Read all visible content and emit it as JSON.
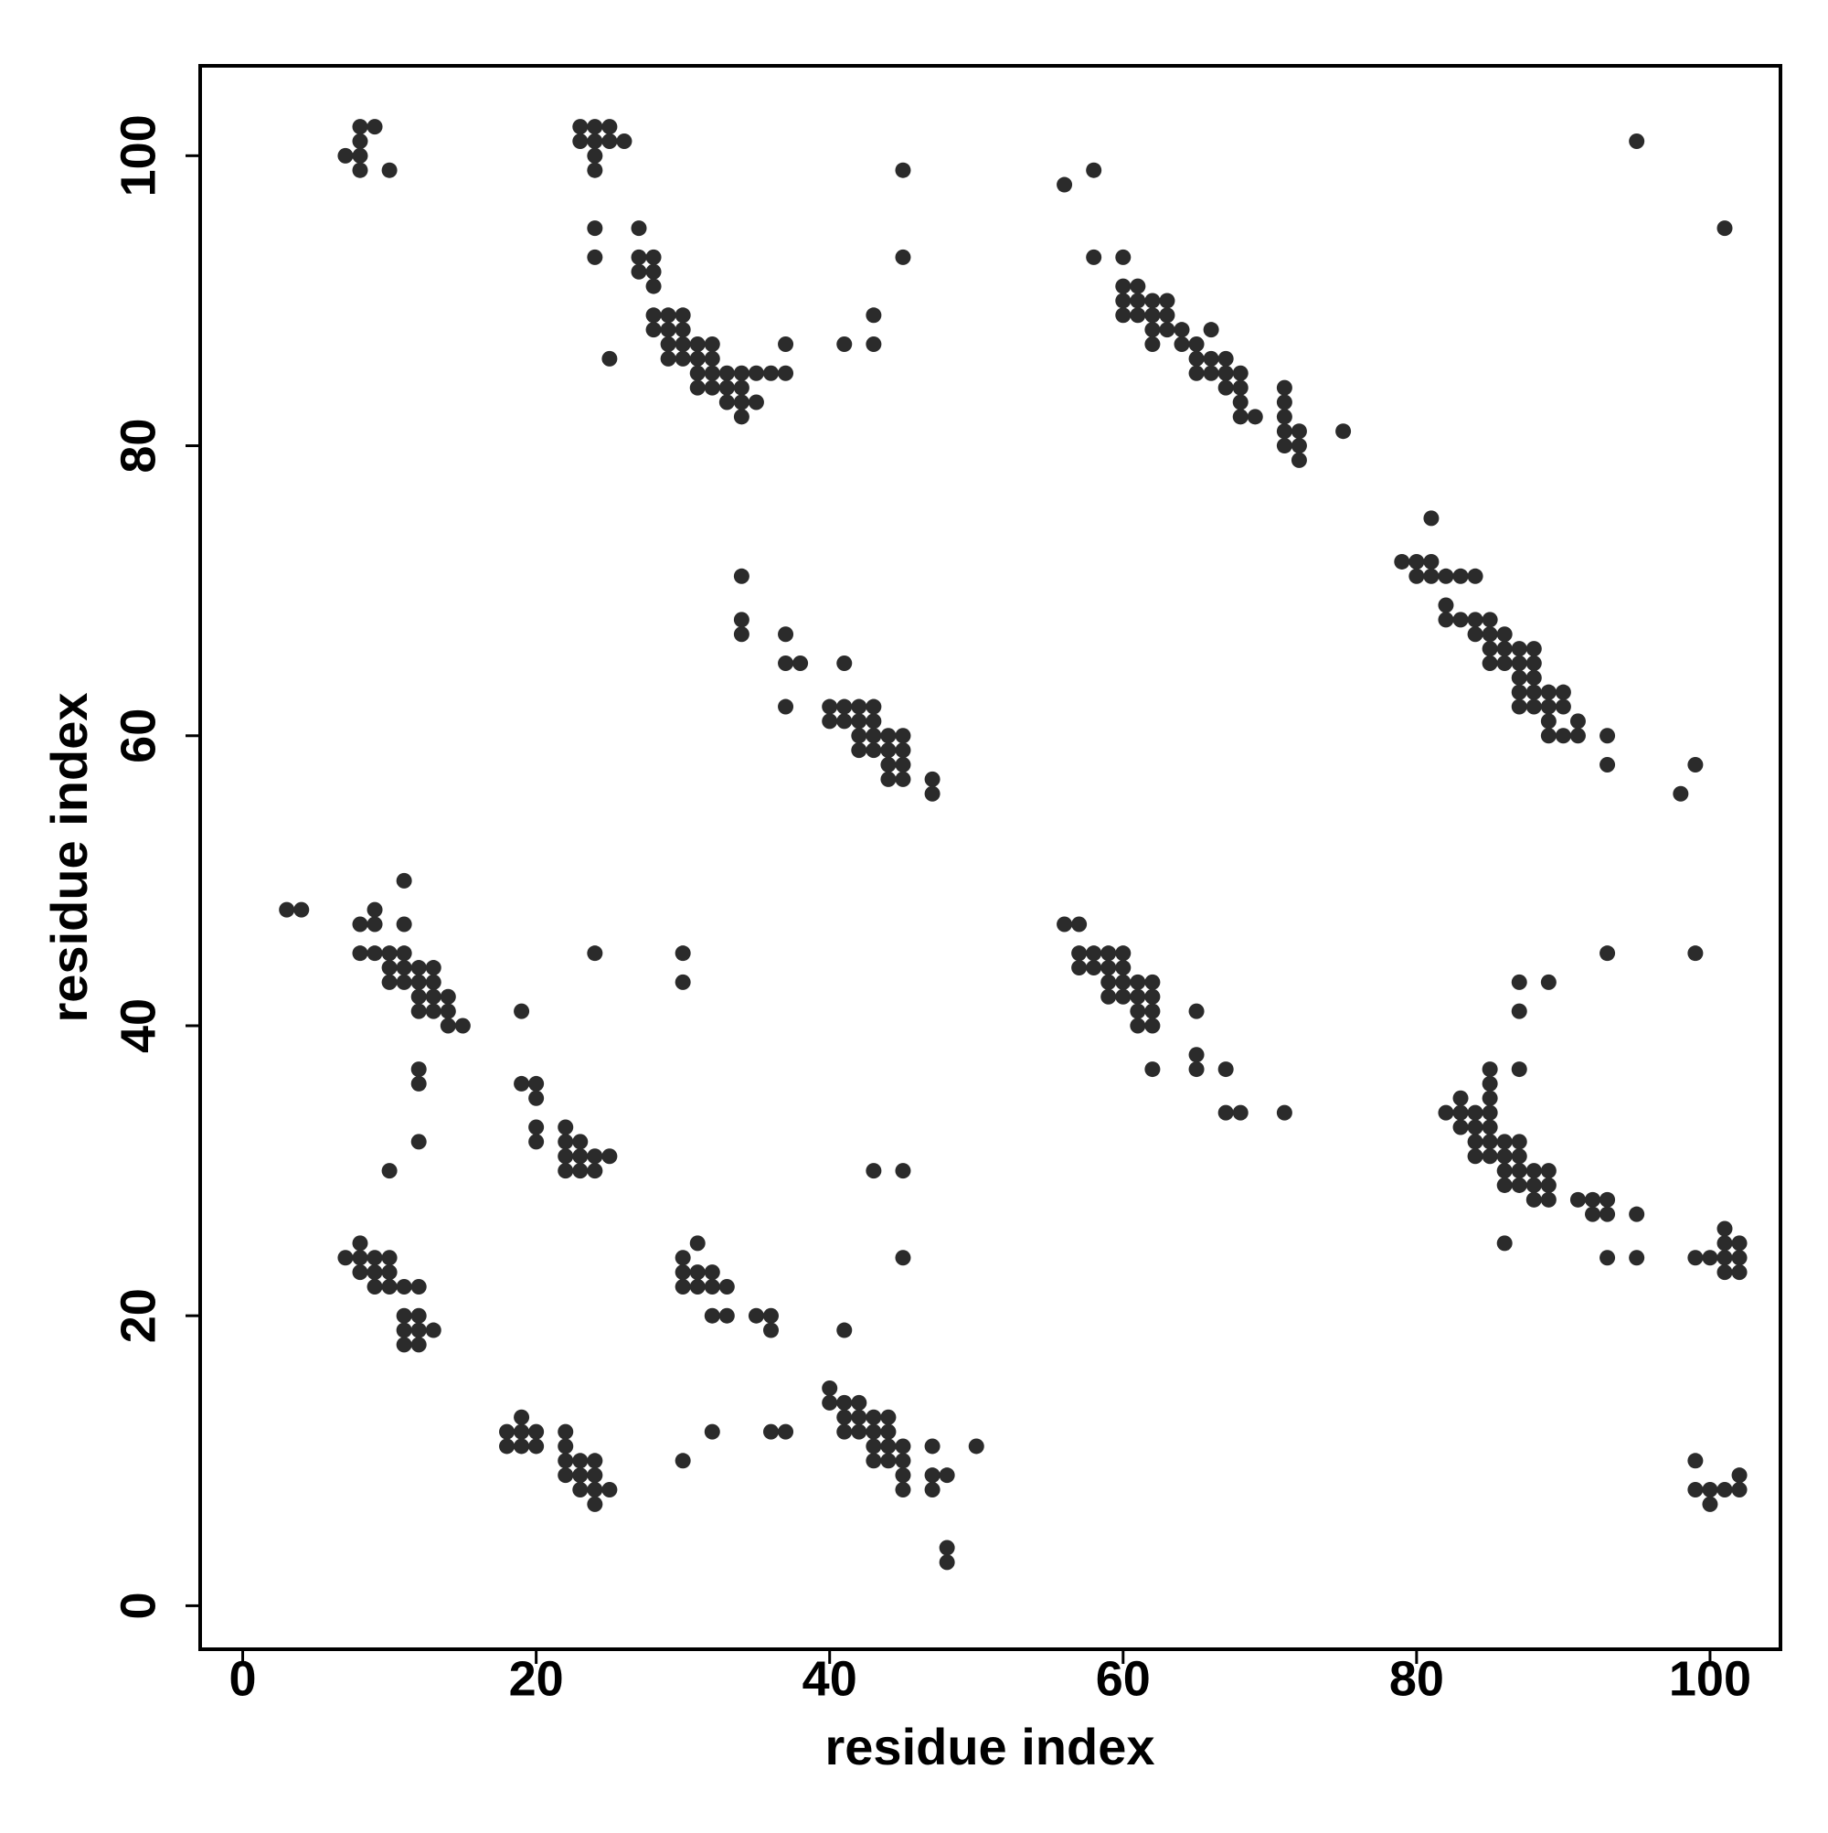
{
  "chart_data": {
    "type": "scatter",
    "xlabel": "residue index",
    "ylabel": "residue index",
    "xlim": [
      -2.9,
      104.8
    ],
    "ylim": [
      -3,
      106.2
    ],
    "xticks": [
      0,
      20,
      40,
      60,
      80,
      100
    ],
    "yticks": [
      0,
      20,
      40,
      60,
      80,
      100
    ],
    "grid": false,
    "series": [
      {
        "color": "#2b2b2b",
        "x": [
          7,
          8,
          9,
          8,
          8,
          10,
          8,
          23,
          24,
          25,
          23,
          24,
          25,
          26,
          24,
          24,
          24,
          24,
          25,
          27,
          27,
          28,
          27,
          28,
          28,
          28,
          29,
          30,
          28,
          29,
          30,
          29,
          30,
          31,
          32,
          29,
          30,
          31,
          32,
          31,
          32,
          33,
          34,
          35,
          36,
          37,
          37,
          31,
          32,
          33,
          34,
          33,
          34,
          35,
          34,
          41,
          43,
          43,
          45,
          45,
          56,
          58,
          58,
          60,
          60,
          61,
          60,
          61,
          62,
          63,
          60,
          61,
          62,
          63,
          62,
          63,
          64,
          62,
          64,
          65,
          66,
          65,
          66,
          67,
          65,
          66,
          67,
          68,
          67,
          68,
          68,
          68,
          69,
          71,
          71,
          71,
          71,
          72,
          71,
          72,
          72,
          75,
          95,
          101,
          34,
          34,
          34,
          37,
          37,
          38,
          37,
          41,
          40,
          40,
          41,
          42,
          43,
          41,
          42,
          43,
          42,
          43,
          44,
          45,
          42,
          43,
          44,
          45,
          44,
          45,
          44,
          45,
          47,
          47,
          81,
          79,
          80,
          81,
          80,
          81,
          82,
          83,
          84,
          82,
          82,
          83,
          84,
          85,
          84,
          85,
          86,
          85,
          86,
          87,
          88,
          85,
          86,
          87,
          88,
          87,
          88,
          87,
          88,
          89,
          90,
          87,
          88,
          89,
          90,
          89,
          91,
          89,
          90,
          91,
          93,
          93,
          98,
          99,
          3,
          4,
          8,
          9,
          9,
          11,
          11,
          8,
          9,
          10,
          11,
          10,
          11,
          12,
          13,
          10,
          11,
          12,
          13,
          12,
          13,
          14,
          12,
          13,
          14,
          14,
          15,
          12,
          12,
          12,
          10,
          24,
          30,
          30,
          19,
          19,
          20,
          20,
          20,
          20,
          22,
          22,
          23,
          22,
          23,
          24,
          25,
          22,
          23,
          24,
          56,
          57,
          57,
          58,
          59,
          60,
          57,
          58,
          59,
          60,
          59,
          60,
          61,
          62,
          59,
          60,
          61,
          62,
          61,
          62,
          65,
          61,
          62,
          65,
          65,
          67,
          62,
          67,
          68,
          71,
          93,
          99,
          87,
          89,
          87,
          85,
          87,
          85,
          83,
          85,
          82,
          83,
          84,
          85,
          83,
          84,
          85,
          84,
          85,
          86,
          87,
          84,
          85,
          86,
          87,
          86,
          87,
          88,
          89,
          86,
          87,
          88,
          89,
          88,
          89,
          91,
          92,
          93,
          92,
          93,
          95,
          86,
          93,
          95,
          99,
          100,
          101,
          102,
          101,
          101,
          102,
          101,
          102,
          7,
          8,
          8,
          9,
          10,
          8,
          9,
          10,
          9,
          10,
          11,
          12,
          11,
          12,
          11,
          12,
          13,
          11,
          12,
          30,
          31,
          30,
          31,
          32,
          30,
          31,
          32,
          33,
          32,
          33,
          35,
          36,
          36,
          43,
          45,
          45,
          41,
          18,
          19,
          20,
          19,
          18,
          19,
          20,
          22,
          22,
          22,
          23,
          24,
          22,
          23,
          24,
          23,
          24,
          25,
          24,
          30,
          32,
          36,
          37,
          40,
          40,
          41,
          42,
          41,
          42,
          43,
          44,
          41,
          42,
          43,
          44,
          43,
          44,
          45,
          43,
          44,
          45,
          45,
          45,
          47,
          47,
          48,
          47,
          50,
          48,
          48,
          99,
          99,
          100,
          101,
          102,
          102,
          100
        ],
        "values": [
          100,
          102,
          102,
          101,
          99,
          99,
          100,
          102,
          102,
          102,
          101,
          101,
          101,
          101,
          100,
          99,
          95,
          93,
          86,
          95,
          93,
          93,
          92,
          92,
          91,
          89,
          89,
          89,
          88,
          88,
          88,
          87,
          87,
          87,
          87,
          86,
          86,
          86,
          86,
          85,
          85,
          85,
          85,
          85,
          85,
          85,
          87,
          84,
          84,
          84,
          84,
          83,
          83,
          83,
          82,
          87,
          89,
          87,
          99,
          93,
          98,
          99,
          93,
          93,
          91,
          91,
          90,
          90,
          90,
          90,
          89,
          89,
          89,
          89,
          88,
          88,
          88,
          87,
          87,
          87,
          88,
          86,
          86,
          86,
          85,
          85,
          85,
          85,
          84,
          84,
          83,
          82,
          82,
          84,
          83,
          82,
          81,
          81,
          80,
          80,
          79,
          81,
          101,
          95,
          71,
          68,
          67,
          67,
          65,
          65,
          62,
          65,
          62,
          61,
          62,
          62,
          62,
          61,
          61,
          61,
          60,
          60,
          60,
          60,
          59,
          59,
          59,
          59,
          58,
          58,
          57,
          57,
          57,
          56,
          75,
          72,
          72,
          72,
          71,
          71,
          71,
          71,
          71,
          69,
          68,
          68,
          68,
          68,
          67,
          67,
          67,
          66,
          66,
          66,
          66,
          65,
          65,
          65,
          65,
          64,
          64,
          63,
          63,
          63,
          63,
          62,
          62,
          62,
          62,
          61,
          61,
          60,
          60,
          60,
          60,
          58,
          56,
          58,
          48,
          48,
          47,
          47,
          48,
          50,
          47,
          45,
          45,
          45,
          45,
          44,
          44,
          44,
          44,
          43,
          43,
          43,
          43,
          42,
          42,
          42,
          41,
          41,
          41,
          40,
          40,
          37,
          36,
          32,
          30,
          45,
          45,
          43,
          41,
          36,
          36,
          35,
          33,
          32,
          33,
          32,
          32,
          31,
          31,
          31,
          31,
          30,
          30,
          30,
          47,
          47,
          45,
          45,
          45,
          45,
          44,
          44,
          44,
          44,
          43,
          43,
          43,
          43,
          42,
          42,
          42,
          42,
          41,
          41,
          41,
          40,
          40,
          38,
          37,
          37,
          37,
          34,
          34,
          34,
          45,
          45,
          43,
          43,
          41,
          37,
          37,
          36,
          35,
          35,
          34,
          34,
          34,
          34,
          33,
          33,
          33,
          32,
          32,
          32,
          32,
          31,
          31,
          31,
          31,
          30,
          30,
          30,
          30,
          29,
          29,
          29,
          29,
          28,
          28,
          28,
          28,
          28,
          27,
          27,
          27,
          25,
          24,
          24,
          24,
          24,
          24,
          24,
          26,
          25,
          25,
          23,
          23,
          24,
          25,
          24,
          24,
          24,
          23,
          23,
          23,
          22,
          22,
          22,
          22,
          20,
          20,
          19,
          19,
          19,
          18,
          18,
          24,
          25,
          23,
          23,
          23,
          22,
          22,
          22,
          22,
          20,
          20,
          20,
          20,
          19,
          30,
          30,
          24,
          19,
          12,
          12,
          12,
          13,
          11,
          11,
          11,
          12,
          11,
          10,
          10,
          10,
          9,
          9,
          9,
          8,
          8,
          8,
          7,
          10,
          12,
          12,
          12,
          15,
          14,
          14,
          14,
          13,
          13,
          13,
          13,
          12,
          12,
          12,
          12,
          11,
          11,
          11,
          10,
          10,
          10,
          9,
          8,
          11,
          9,
          9,
          8,
          11,
          4,
          3,
          10,
          8,
          8,
          8,
          8,
          9,
          7
        ]
      }
    ]
  }
}
